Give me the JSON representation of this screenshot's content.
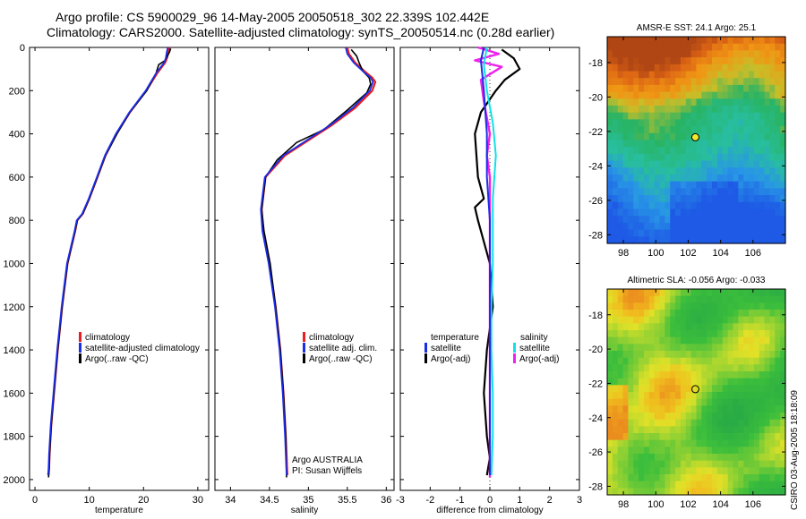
{
  "header": {
    "line1": "Argo profile: CS 5900029_96 14-May-2005 20050518_302 22.339S 102.442E",
    "line2": "Climatology: CARS2000. Satellite-adjusted climatology: synTS_20050514.nc (0.28d earlier)"
  },
  "side_caption": "CSIRO 03-Aug-2005 18:18:09",
  "colors": {
    "argo": "#000000",
    "climatology": "#ee1c1c",
    "satellite": "#1a2ee6",
    "salinity_satellite": "#12e0e6",
    "salinity_argo": "#ee22ee"
  },
  "chart_data": [
    {
      "type": "line",
      "xlabel": "temperature",
      "ylabel": "",
      "xlim": [
        -1,
        32
      ],
      "ylim": [
        2050,
        0
      ],
      "xticks": [
        "0",
        "10",
        "20",
        "30"
      ],
      "yticks": [
        "0",
        "200",
        "400",
        "600",
        "800",
        "1000",
        "1200",
        "1400",
        "1600",
        "1800",
        "2000"
      ],
      "y_inverted": true,
      "legend": [
        "climatology",
        "satellite-adjusted climatology",
        "Argo(..raw -QC)"
      ],
      "legend_position": "middle-right",
      "series": [
        {
          "name": "climatology",
          "x": [
            24.8,
            24.6,
            24.3,
            24.0,
            22.5,
            20.5,
            17.5,
            15.0,
            13.0,
            11.5,
            10.0,
            8.8,
            7.8,
            7.4,
            6.0,
            5.0,
            4.2,
            3.5,
            3.0,
            2.7,
            2.6,
            2.5
          ],
          "y": [
            0,
            20,
            50,
            70,
            120,
            200,
            300,
            400,
            500,
            600,
            700,
            770,
            800,
            850,
            1000,
            1200,
            1400,
            1600,
            1750,
            1880,
            1950,
            1980
          ]
        },
        {
          "name": "satellite-adjusted climatology",
          "x": [
            24.5,
            24.3,
            24.1,
            23.8,
            22.3,
            20.4,
            17.4,
            14.9,
            12.9,
            11.4,
            9.9,
            8.7,
            7.7,
            7.3,
            5.9,
            4.9,
            4.1,
            3.4,
            2.9,
            2.6,
            2.5,
            2.4
          ],
          "y": [
            0,
            20,
            50,
            70,
            120,
            200,
            300,
            400,
            500,
            600,
            700,
            770,
            800,
            850,
            1000,
            1200,
            1400,
            1600,
            1750,
            1880,
            1950,
            1980
          ]
        },
        {
          "name": "Argo(..raw -QC)",
          "x": [
            25.0,
            24.8,
            24.0,
            22.8,
            22.3,
            20.6,
            17.5,
            15.1,
            13.0,
            11.5,
            10.0,
            8.8,
            7.8,
            7.4,
            6.0,
            5.0,
            4.2,
            3.5,
            3.0,
            2.7,
            2.6,
            2.5
          ],
          "y": [
            5,
            20,
            60,
            80,
            120,
            200,
            300,
            400,
            500,
            600,
            700,
            770,
            800,
            850,
            1000,
            1200,
            1400,
            1600,
            1750,
            1880,
            1950,
            1990
          ]
        }
      ]
    },
    {
      "type": "line",
      "xlabel": "salinity",
      "ylabel": "",
      "xlim": [
        33.8,
        36.1
      ],
      "ylim": [
        2050,
        0
      ],
      "xticks": [
        "34",
        "34.5",
        "35",
        "35.5",
        "36"
      ],
      "y_inverted": true,
      "legend": [
        "climatology",
        "satellite adj. clim.",
        "Argo(..raw -QC)"
      ],
      "legend_position": "middle-right",
      "annotations": [
        "Argo AUSTRALIA",
        "PI: Susan Wijffels"
      ],
      "series": [
        {
          "name": "climatology",
          "x": [
            35.5,
            35.52,
            35.6,
            35.72,
            35.82,
            35.86,
            35.82,
            35.6,
            35.3,
            35.0,
            34.7,
            34.45,
            34.4,
            34.42,
            34.5,
            34.58,
            34.64,
            34.68,
            34.71,
            34.73
          ],
          "y": [
            0,
            30,
            70,
            110,
            140,
            160,
            200,
            280,
            360,
            430,
            500,
            600,
            750,
            850,
            1000,
            1200,
            1400,
            1600,
            1800,
            1980
          ]
        },
        {
          "name": "satellite adj. clim.",
          "x": [
            35.48,
            35.5,
            35.58,
            35.7,
            35.8,
            35.83,
            35.79,
            35.57,
            35.28,
            34.98,
            34.68,
            34.44,
            34.39,
            34.41,
            34.49,
            34.57,
            34.63,
            34.67,
            34.7,
            34.72
          ],
          "y": [
            0,
            30,
            70,
            110,
            140,
            160,
            200,
            280,
            360,
            430,
            500,
            600,
            750,
            850,
            1000,
            1200,
            1400,
            1600,
            1800,
            1980
          ]
        },
        {
          "name": "Argo(..raw -QC)",
          "x": [
            35.55,
            35.62,
            35.65,
            35.7,
            35.78,
            35.8,
            35.75,
            35.5,
            35.2,
            34.85,
            34.6,
            34.45,
            34.4,
            34.43,
            34.51,
            34.58,
            34.64,
            34.68,
            34.71,
            34.72
          ],
          "y": [
            10,
            40,
            70,
            110,
            140,
            170,
            210,
            290,
            380,
            440,
            520,
            600,
            750,
            850,
            1000,
            1200,
            1400,
            1600,
            1800,
            1990
          ]
        }
      ]
    },
    {
      "type": "line",
      "xlabel": "difference from climatology",
      "ylabel": "",
      "xlim": [
        -3,
        3
      ],
      "ylim": [
        2050,
        0
      ],
      "xticks": [
        "-3",
        "-2",
        "-1",
        "0",
        "1",
        "2",
        "3"
      ],
      "y_inverted": true,
      "legend": [
        "temperature",
        "satellite",
        "Argo(-adj)",
        "salinity",
        "satellite",
        "Argo(-adj)"
      ],
      "legend_position": "middle",
      "series": [
        {
          "name": "satellite",
          "quantity": "temperature",
          "x": [
            -0.2,
            -0.3,
            -0.2,
            -0.1,
            -0.1,
            0.0,
            0.0,
            0.0,
            0.0,
            0.0,
            0.0,
            0.0,
            0.0
          ],
          "y": [
            0,
            60,
            200,
            400,
            600,
            800,
            1000,
            1200,
            1400,
            1600,
            1800,
            1900,
            1980
          ]
        },
        {
          "name": "Argo(-adj)",
          "quantity": "temperature",
          "x": [
            0.4,
            0.8,
            1.0,
            0.5,
            0.2,
            -0.3,
            -0.5,
            -0.4,
            -0.2,
            -0.5,
            -0.4,
            0.0,
            0.1,
            -0.1,
            -0.2,
            -0.1,
            0.0,
            -0.1
          ],
          "y": [
            10,
            50,
            100,
            150,
            200,
            300,
            400,
            600,
            700,
            740,
            800,
            1000,
            1200,
            1400,
            1600,
            1800,
            1900,
            1980
          ]
        },
        {
          "name": "satellite",
          "quantity": "salinity",
          "x": [
            -0.1,
            -0.2,
            -0.1,
            0.1,
            0.2,
            0.1,
            0.1,
            0.1,
            0.05,
            0.05,
            0.1,
            0.1,
            0.05
          ],
          "y": [
            0,
            80,
            200,
            350,
            500,
            700,
            800,
            1000,
            1200,
            1400,
            1600,
            1800,
            1980
          ]
        },
        {
          "name": "Argo(-adj)",
          "quantity": "salinity",
          "x": [
            -0.4,
            0.3,
            -0.5,
            0.4,
            -0.3,
            -0.2,
            0.0,
            -0.1,
            0.0,
            0.0,
            0.0,
            0.0,
            0.0,
            0.0
          ],
          "y": [
            0,
            30,
            60,
            90,
            150,
            250,
            400,
            500,
            600,
            800,
            1000,
            1400,
            1800,
            1990
          ]
        }
      ]
    },
    {
      "type": "heatmap",
      "title": "AMSR-E SST: 24.1  Argo: 25.1",
      "xticks": [
        "98",
        "100",
        "102",
        "104",
        "106"
      ],
      "yticks": [
        "-18",
        "-20",
        "-22",
        "-24",
        "-26",
        "-28"
      ],
      "xlim": [
        97,
        108
      ],
      "ylim": [
        -28.5,
        -16.5
      ],
      "marker": {
        "lon": 102.442,
        "lat": -22.339
      }
    },
    {
      "type": "heatmap",
      "title": "Altimetric SLA: -0.056  Argo: -0.033",
      "xticks": [
        "98",
        "100",
        "102",
        "104",
        "106"
      ],
      "yticks": [
        "-18",
        "-20",
        "-22",
        "-24",
        "-26",
        "-28"
      ],
      "xlim": [
        97,
        108
      ],
      "ylim": [
        -28.5,
        -16.5
      ],
      "marker": {
        "lon": 102.442,
        "lat": -22.339
      }
    }
  ]
}
